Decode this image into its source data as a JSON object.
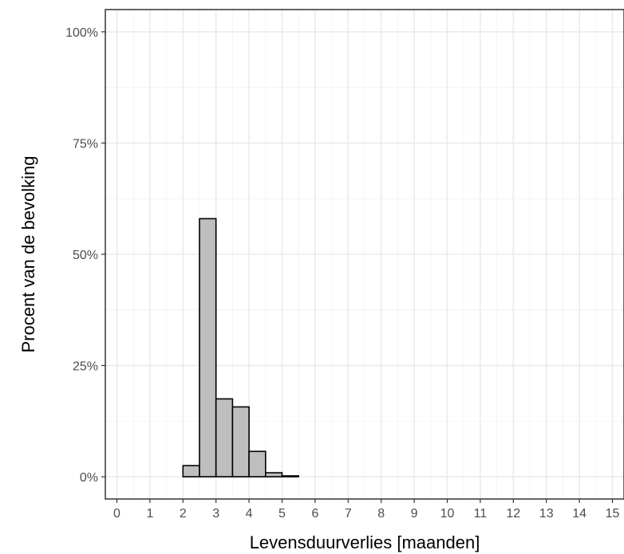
{
  "chart_data": {
    "type": "bar",
    "xlabel": "Levensduurverlies [maanden]",
    "ylabel": "Procent van de bevolking",
    "x_ticks": [
      "0",
      "1",
      "2",
      "3",
      "4",
      "5",
      "6",
      "7",
      "8",
      "9",
      "10",
      "11",
      "12",
      "13",
      "14",
      "15"
    ],
    "y_ticks": [
      "0%",
      "25%",
      "50%",
      "75%",
      "100%"
    ],
    "xlim": [
      -0.35,
      15.35
    ],
    "ylim": [
      -0.05,
      1.05
    ],
    "bin_width": 0.5,
    "bins": [
      {
        "x0": 0.0,
        "x1": 0.5,
        "value": 0.0
      },
      {
        "x0": 0.5,
        "x1": 1.0,
        "value": 0.0
      },
      {
        "x0": 1.0,
        "x1": 1.5,
        "value": 0.0
      },
      {
        "x0": 1.5,
        "x1": 2.0,
        "value": 0.0
      },
      {
        "x0": 2.0,
        "x1": 2.5,
        "value": 0.025
      },
      {
        "x0": 2.5,
        "x1": 3.0,
        "value": 0.58
      },
      {
        "x0": 3.0,
        "x1": 3.5,
        "value": 0.175
      },
      {
        "x0": 3.5,
        "x1": 4.0,
        "value": 0.157
      },
      {
        "x0": 4.0,
        "x1": 4.5,
        "value": 0.057
      },
      {
        "x0": 4.5,
        "x1": 5.0,
        "value": 0.009
      },
      {
        "x0": 5.0,
        "x1": 5.5,
        "value": 0.002
      },
      {
        "x0": 5.5,
        "x1": 6.0,
        "value": 0.0
      },
      {
        "x0": 6.0,
        "x1": 6.5,
        "value": 0.0
      },
      {
        "x0": 6.5,
        "x1": 7.0,
        "value": 0.0
      },
      {
        "x0": 7.0,
        "x1": 7.5,
        "value": 0.0
      },
      {
        "x0": 7.5,
        "x1": 8.0,
        "value": 0.0
      },
      {
        "x0": 8.0,
        "x1": 8.5,
        "value": 0.0
      },
      {
        "x0": 8.5,
        "x1": 9.0,
        "value": 0.0
      },
      {
        "x0": 9.0,
        "x1": 9.5,
        "value": 0.0
      },
      {
        "x0": 9.5,
        "x1": 10.0,
        "value": 0.0
      },
      {
        "x0": 10.0,
        "x1": 10.5,
        "value": 0.0
      },
      {
        "x0": 10.5,
        "x1": 11.0,
        "value": 0.0
      },
      {
        "x0": 11.0,
        "x1": 11.5,
        "value": 0.0
      },
      {
        "x0": 11.5,
        "x1": 12.0,
        "value": 0.0
      },
      {
        "x0": 12.0,
        "x1": 12.5,
        "value": 0.0
      },
      {
        "x0": 12.5,
        "x1": 13.0,
        "value": 0.0
      },
      {
        "x0": 13.0,
        "x1": 13.5,
        "value": 0.0
      },
      {
        "x0": 13.5,
        "x1": 14.0,
        "value": 0.0
      },
      {
        "x0": 14.0,
        "x1": 14.5,
        "value": 0.0
      },
      {
        "x0": 14.5,
        "x1": 15.0,
        "value": 0.0
      }
    ],
    "grid": true,
    "legend": "none"
  },
  "colors": {
    "bar_fill": "#bebebe",
    "bar_stroke": "#000000",
    "grid_major": "#ebebeb",
    "grid_minor": "#f4f4f4",
    "panel_border": "#333333",
    "tick_text": "#4d4d4d"
  }
}
